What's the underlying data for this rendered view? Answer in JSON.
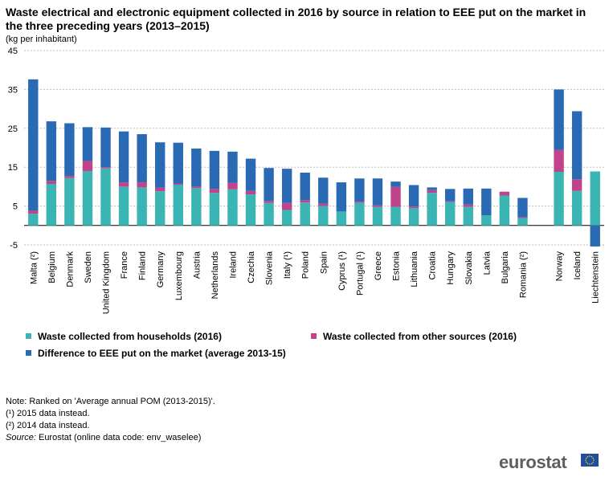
{
  "title": "Waste electrical and electronic equipment collected in 2016 by source in relation to EEE put on the market in the three preceding years (2013–2015)",
  "unit": "(kg per inhabitant)",
  "chart_data": {
    "type": "bar",
    "stacked": true,
    "ylim": [
      -5,
      45
    ],
    "yticks": [
      45,
      35,
      25,
      15,
      5,
      -5
    ],
    "categories": [
      "Malta (²)",
      "Belgium",
      "Denmark",
      "Sweden",
      "United Kingdom",
      "France",
      "Finland",
      "Germany",
      "Luxembourg",
      "Austria",
      "Netherlands",
      "Ireland",
      "Czechia",
      "Slovenia",
      "Italy (¹)",
      "Poland",
      "Spain",
      "Cyprus (¹)",
      "Portugal (¹)",
      "Greece",
      "Estonia",
      "Lithuania",
      "Croatia",
      "Hungary",
      "Slovakia",
      "Latvia",
      "Bulgaria",
      "Romania (²)",
      "",
      "Norway",
      "Iceland",
      "Liechtenstein"
    ],
    "series": [
      {
        "name": "Waste collected from households (2016)",
        "color": "#3bb5b3",
        "values": [
          3.0,
          10.7,
          12.2,
          14.0,
          14.7,
          10.0,
          9.8,
          8.8,
          10.5,
          9.6,
          8.4,
          9.3,
          8.0,
          5.8,
          4.0,
          5.9,
          5.0,
          3.6,
          5.8,
          4.8,
          4.8,
          4.5,
          8.4,
          6.0,
          4.8,
          2.6,
          7.7,
          1.9,
          null,
          13.8,
          8.9,
          13.9
        ]
      },
      {
        "name": "Waste collected from other sources (2016)",
        "color": "#c1438c",
        "values": [
          0.8,
          0.8,
          0.5,
          2.6,
          0.3,
          1.1,
          1.3,
          0.9,
          0.3,
          0.4,
          1.0,
          1.7,
          0.9,
          0.5,
          1.8,
          0.6,
          0.6,
          0.0,
          0.3,
          0.4,
          5.1,
          0.4,
          0.7,
          0.2,
          0.6,
          0.0,
          1.0,
          0.2,
          null,
          5.6,
          3.0,
          0.0
        ]
      },
      {
        "name": "Difference to EEE put on the market (average 2013-15)",
        "color": "#2a6ab5",
        "values": [
          33.8,
          15.3,
          13.6,
          8.7,
          10.2,
          13.1,
          12.4,
          11.7,
          10.5,
          9.8,
          9.8,
          8.0,
          8.3,
          8.5,
          8.8,
          7.1,
          6.7,
          7.5,
          6.0,
          6.9,
          1.4,
          5.5,
          0.7,
          3.2,
          4.1,
          6.9,
          0.0,
          5.0,
          null,
          15.6,
          17.5,
          -5.4
        ]
      }
    ]
  },
  "legend": [
    {
      "label": "Waste collected from households (2016)",
      "color": "#3bb5b3"
    },
    {
      "label": "Waste collected from other sources (2016)",
      "color": "#c1438c"
    },
    {
      "label": "Difference to EEE put on the market (average 2013-15)",
      "color": "#2a6ab5"
    }
  ],
  "notes": {
    "note": "Note: Ranked on 'Average annual POM (2013-2015)'.",
    "fn1": "(¹) 2015 data instead.",
    "fn2": "(²) 2014 data instead.",
    "source_label": "Source:",
    "source_text": " Eurostat (online data code: env_waselee)"
  },
  "logo": "eurostat"
}
